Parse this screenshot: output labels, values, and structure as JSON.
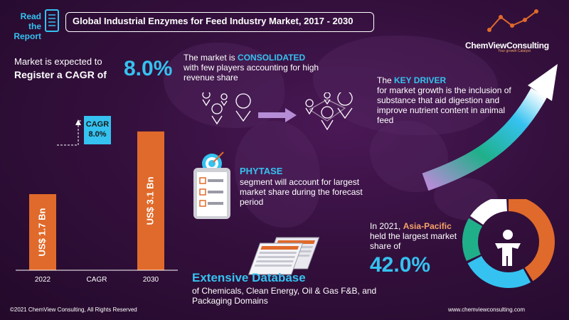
{
  "header": {
    "read_report": "Read the Report",
    "title": "Global Industrial Enzymes for Feed Industry Market, 2017 - 2030"
  },
  "logo": {
    "name": "ChemViewConsulting",
    "tagline": "Your growth Catalyst"
  },
  "cagr_callout": {
    "line1": "Market is expected to",
    "line2": "Register a CAGR of",
    "value": "8.0%"
  },
  "consolidated": {
    "prefix": "The market is ",
    "highlight": "CONSOLIDATED",
    "rest": "with few players accounting for high revenue share"
  },
  "phytase": {
    "title": "PHYTASE",
    "text": "segment will account for largest market share during the forecast period"
  },
  "database": {
    "title": "Extensive Database",
    "text": "of Chemicals, Clean Energy, Oil & Gas F&B, and Packaging Domains"
  },
  "driver": {
    "prefix": "The ",
    "highlight": "KEY DRIVER",
    "rest": "for market growth is the inclusion of substance that aid digestion and improve nutrient content in animal feed"
  },
  "region": {
    "prefix": "In 2021, ",
    "highlight": "Asia-Pacific",
    "rest": "held the largest market share of",
    "value": "42.0%"
  },
  "footer": {
    "copyright": "©2021 ChemView Consulting,  All Rights Reserved",
    "website": "www.chemviewconsulting.com"
  },
  "colors": {
    "accent": "#35c2f0",
    "bar": "#e06a2b",
    "highlight": "#f4a46a",
    "background": "#34103d"
  },
  "icons": [
    "report-icon",
    "location-pin-icon",
    "arrow-right-icon",
    "checklist-icon",
    "target-icon",
    "database-icon",
    "growth-arrow-icon",
    "person-icon",
    "logo-graph-icon"
  ],
  "chart_data": [
    {
      "type": "bar",
      "categories": [
        "2022",
        "CAGR",
        "2030"
      ],
      "values": [
        1.7,
        null,
        3.1
      ],
      "data_labels": [
        "US$ 1.7 Bn",
        "",
        "US$ 3.1 Bn"
      ],
      "annotation": {
        "label": "CAGR",
        "value": "8.0%"
      },
      "ylim": [
        0,
        3.4
      ]
    },
    {
      "type": "pie",
      "donut": true,
      "highlighted_segment": {
        "value": 42.0
      },
      "segment_colors": [
        "#e06a2b",
        "#35c2f0",
        "#1fb08a",
        "#ffffff"
      ]
    }
  ]
}
